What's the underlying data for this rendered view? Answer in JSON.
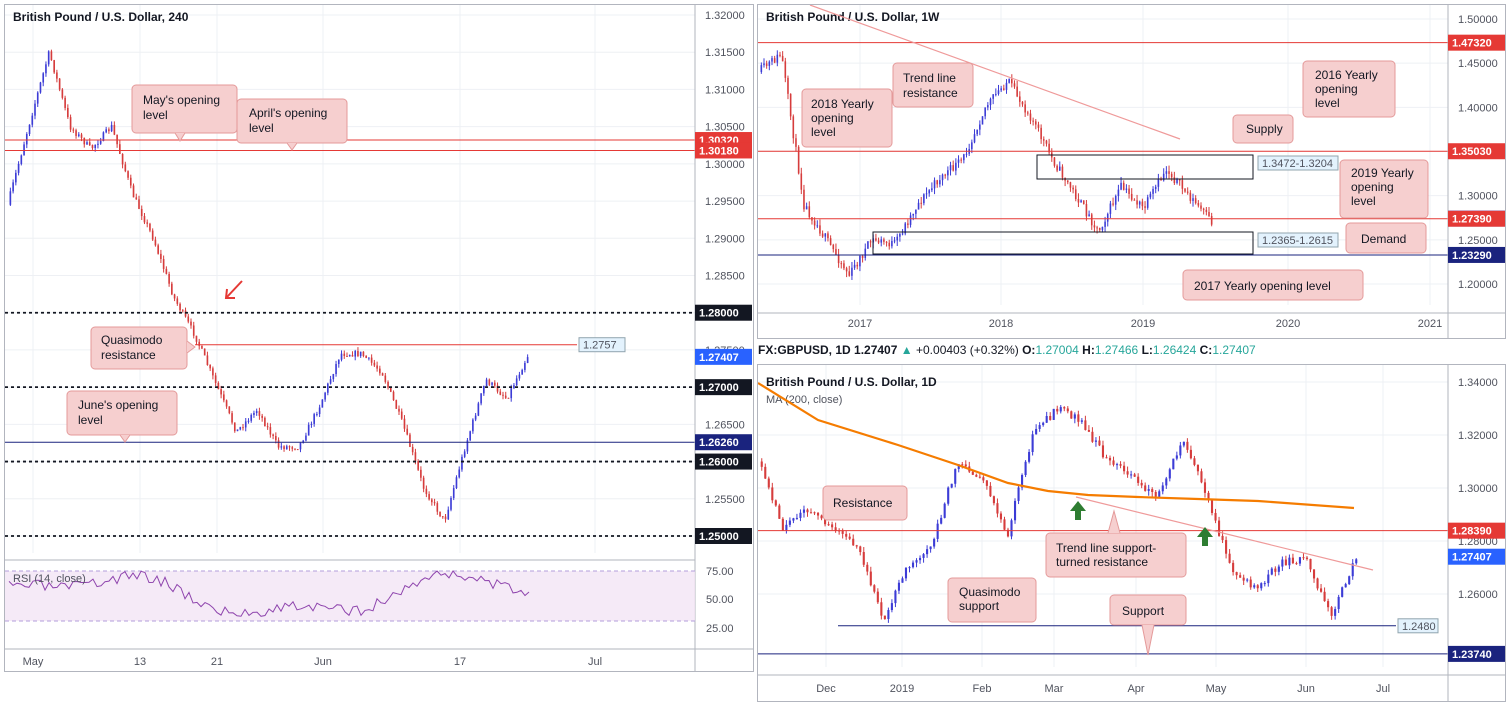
{
  "charts": {
    "h4": {
      "title": "British Pound / U.S. Dollar, 240",
      "y_ticks": [
        "1.32000",
        "1.31500",
        "1.31000",
        "1.30500",
        "1.30000",
        "1.29500",
        "1.29000",
        "1.28500",
        "1.28000",
        "1.27500",
        "1.27000",
        "1.26500",
        "1.26000",
        "1.25500",
        "1.25000"
      ],
      "x_ticks": [
        "May",
        "13",
        "21",
        "Jun",
        "17",
        "Jul"
      ],
      "price_tags": [
        {
          "label": "1.30320",
          "kind": "red"
        },
        {
          "label": "1.30180",
          "kind": "red"
        },
        {
          "label": "1.28000",
          "kind": "black"
        },
        {
          "label": "1.27407",
          "kind": "blue"
        },
        {
          "label": "1.27000",
          "kind": "black"
        },
        {
          "label": "1.26260",
          "kind": "navy"
        },
        {
          "label": "1.26000",
          "kind": "black"
        },
        {
          "label": "1.25000",
          "kind": "black"
        }
      ],
      "level_label": "1.2757",
      "annotations": [
        {
          "text": "May's opening level"
        },
        {
          "text": "April's opening level"
        },
        {
          "text": "Quasimodo resistance"
        },
        {
          "text": "June's opening level"
        }
      ],
      "rsi": {
        "label": "RSI (14, close)",
        "ticks": [
          "75.00",
          "50.00",
          "25.00"
        ]
      }
    },
    "w1": {
      "title": "British Pound / U.S. Dollar, 1W",
      "y_ticks": [
        "1.50000",
        "1.45000",
        "1.40000",
        "1.35000",
        "1.30000",
        "1.25000",
        "1.20000"
      ],
      "x_ticks": [
        "2017",
        "2018",
        "2019",
        "2020",
        "2021"
      ],
      "price_tags": [
        {
          "label": "1.47320",
          "kind": "red"
        },
        {
          "label": "1.35030",
          "kind": "red"
        },
        {
          "label": "1.27407",
          "kind": "blue"
        },
        {
          "label": "1.27390",
          "kind": "red"
        },
        {
          "label": "1.23290",
          "kind": "navy"
        }
      ],
      "zone_labels": [
        "1.3472-1.3204",
        "1.2365-1.2615"
      ],
      "annotations": [
        {
          "text": "Trend line resistance"
        },
        {
          "text": "2018 Yearly opening level"
        },
        {
          "text": "2016 Yearly opening level"
        },
        {
          "text": "Supply"
        },
        {
          "text": "2019 Yearly opening level"
        },
        {
          "text": "Demand"
        },
        {
          "text": "2017 Yearly opening level"
        }
      ]
    },
    "d1": {
      "title": "British Pound / U.S. Dollar, 1D",
      "ma_label": "MA (200, close)",
      "y_ticks": [
        "1.34000",
        "1.32000",
        "1.30000",
        "1.28000",
        "1.26000"
      ],
      "x_ticks": [
        "Dec",
        "2019",
        "Feb",
        "Mar",
        "Apr",
        "May",
        "Jun",
        "Jul"
      ],
      "price_tags": [
        {
          "label": "1.28390",
          "kind": "red"
        },
        {
          "label": "1.27407",
          "kind": "blue"
        },
        {
          "label": "1.23740",
          "kind": "navy"
        }
      ],
      "level_label": "1.2480",
      "annotations": [
        {
          "text": "Resistance"
        },
        {
          "text": "Trend line support-turned resistance"
        },
        {
          "text": "Quasimodo support"
        },
        {
          "text": "Support"
        }
      ]
    }
  },
  "quote": {
    "symbol": "FX:GBPUSD, 1D",
    "last": "1.27407",
    "change": "+0.00403 (+0.32%)",
    "o_label": "O:",
    "o": "1.27004",
    "h_label": "H:",
    "h": "1.27466",
    "l_label": "L:",
    "l": "1.26424",
    "c_label": "C:",
    "c": "1.27407"
  },
  "colors": {
    "bull": "#3c3cd6",
    "bear": "#d63c3c",
    "red_level": "#e53935",
    "navy_level": "#1a237e",
    "ma": "#f57c00",
    "rsi": "#8e44ad",
    "blue_tag": "#2962ff"
  }
}
